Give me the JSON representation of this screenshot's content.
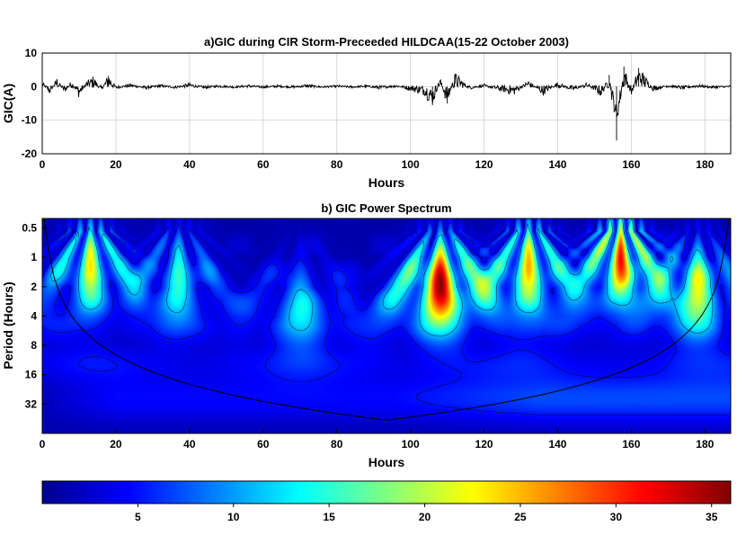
{
  "chart_data": [
    {
      "type": "line",
      "title": "a)GIC during CIR Storm-Preceeded HILDCAA(15-22 October 2003)",
      "xlabel": "Hours",
      "ylabel": "GIC(A)",
      "xlim": [
        0,
        187
      ],
      "ylim": [
        -20,
        10
      ],
      "xticks": [
        "0",
        "20",
        "40",
        "60",
        "80",
        "100",
        "120",
        "140",
        "160",
        "180"
      ],
      "yticks": [
        "10",
        "0",
        "-10",
        "-20"
      ],
      "grid": true,
      "series": [
        {
          "x": [
            0,
            2,
            4,
            6,
            8,
            10,
            12,
            14,
            16,
            18,
            20,
            24,
            28,
            32,
            36,
            40,
            44,
            48,
            52,
            56,
            60,
            64,
            68,
            72,
            76,
            80,
            84,
            88,
            92,
            96,
            100,
            104,
            106,
            108,
            110,
            112,
            116,
            120,
            124,
            128,
            132,
            136,
            140,
            144,
            148,
            152,
            154,
            156,
            158,
            160,
            162,
            166,
            170,
            174,
            178,
            182,
            187
          ],
          "values": [
            1.2,
            -1.8,
            2.1,
            -1.5,
            1.4,
            -2.6,
            1.1,
            2.5,
            -1.2,
            3.2,
            -0.4,
            0.6,
            -0.5,
            0.4,
            -0.3,
            0.7,
            -0.4,
            0.3,
            -0.2,
            0.3,
            -0.2,
            0.2,
            -0.2,
            0.4,
            -0.2,
            0.2,
            -0.2,
            0.2,
            -0.5,
            0.4,
            -0.8,
            -2.0,
            -5.5,
            2.5,
            -5.0,
            3.5,
            -0.5,
            0.4,
            -0.8,
            -2.0,
            1.5,
            -2.0,
            1.0,
            -1.0,
            0.8,
            -2.5,
            3.5,
            -16.0,
            6.0,
            -2.5,
            5.5,
            -1.0,
            0.5,
            -0.6,
            0.4,
            -0.3,
            0.1
          ]
        }
      ]
    },
    {
      "type": "heatmap",
      "title": "b) GIC Power Spectrum",
      "xlabel": "Hours",
      "ylabel": "Period (Hours)",
      "xlim": [
        0,
        187
      ],
      "ylim": [
        0.4,
        64
      ],
      "yscale": "log2",
      "xticks": [
        "0",
        "20",
        "40",
        "60",
        "80",
        "100",
        "120",
        "140",
        "160",
        "180"
      ],
      "yticks": [
        "0.5",
        "1",
        "2",
        "4",
        "8",
        "16",
        "32"
      ],
      "colormap": "jet",
      "colorbar": {
        "range": [
          0,
          36
        ],
        "ticks": [
          "5",
          "10",
          "15",
          "20",
          "25",
          "30",
          "35"
        ]
      },
      "bursts": [
        {
          "x": 13,
          "y": 1.2,
          "power": 22
        },
        {
          "x": 37,
          "y": 1.5,
          "power": 14
        },
        {
          "x": 70,
          "y": 3.0,
          "power": 10
        },
        {
          "x": 108,
          "y": 1.8,
          "power": 34
        },
        {
          "x": 132,
          "y": 1.2,
          "power": 24
        },
        {
          "x": 157,
          "y": 1.0,
          "power": 30
        },
        {
          "x": 178,
          "y": 2.0,
          "power": 20
        }
      ]
    }
  ],
  "colors": {
    "line": "#000000",
    "grid": "#d9d9d9",
    "cone": "#000000"
  }
}
